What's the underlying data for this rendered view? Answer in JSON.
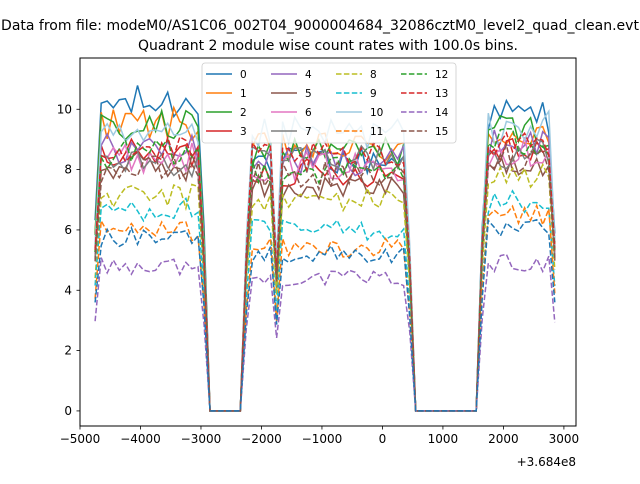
{
  "figure": {
    "suptitle": "Data from file: modeM0/AS1C06_002T04_9000004684_32086cztM0_level2_quad_clean.evt",
    "title": "Quadrant 2 module wise count rates with 100.0s bins.",
    "offset_label": "+3.684e8"
  },
  "chart_data": {
    "type": "line",
    "title": "Quadrant 2 module wise count rates with 100.0s bins.",
    "xlabel": "",
    "ylabel": "",
    "x_offset": 368400000,
    "xlim": [
      -5000,
      3200
    ],
    "ylim": [
      -0.5,
      11.7
    ],
    "xticks": [
      -5000,
      -4000,
      -3000,
      -2000,
      -1000,
      0,
      1000,
      2000,
      3000
    ],
    "xtick_labels": [
      "−5000",
      "−4000",
      "−3000",
      "−2000",
      "−1000",
      "0",
      "1000",
      "2000",
      "3000"
    ],
    "yticks": [
      0,
      2,
      4,
      6,
      8,
      10
    ],
    "ytick_labels": [
      "0",
      "2",
      "4",
      "6",
      "8",
      "10"
    ],
    "grid": false,
    "legend_position": "top-center",
    "legend_columns": 4,
    "segments": [
      [
        -4750,
        -2950
      ],
      [
        -2250,
        450
      ],
      [
        1650,
        2850
      ]
    ],
    "gap_points": [
      [
        -2850,
        0
      ],
      [
        -2350,
        0
      ],
      [
        550,
        0
      ],
      [
        1550,
        0
      ]
    ],
    "series": [
      {
        "name": "0",
        "color": "#1f77b4",
        "style": "solid",
        "levels": [
          10.2,
          8.3,
          9.8
        ]
      },
      {
        "name": "1",
        "color": "#ff7f0e",
        "style": "solid",
        "levels": [
          9.5,
          8.7,
          9.2
        ]
      },
      {
        "name": "2",
        "color": "#2ca02c",
        "style": "solid",
        "levels": [
          9.4,
          8.6,
          9.3
        ]
      },
      {
        "name": "3",
        "color": "#d62728",
        "style": "solid",
        "levels": [
          8.5,
          7.9,
          8.8
        ]
      },
      {
        "name": "4",
        "color": "#9467bd",
        "style": "solid",
        "levels": [
          8.7,
          8.3,
          8.9
        ]
      },
      {
        "name": "5",
        "color": "#8c564b",
        "style": "solid",
        "levels": [
          8.1,
          7.4,
          8.3
        ]
      },
      {
        "name": "6",
        "color": "#e377c2",
        "style": "solid",
        "levels": [
          8.4,
          8.1,
          8.6
        ]
      },
      {
        "name": "7",
        "color": "#7f7f7f",
        "style": "solid",
        "levels": [
          8.2,
          8.4,
          8.5
        ]
      },
      {
        "name": "8",
        "color": "#bcbd22",
        "style": "dashed",
        "levels": [
          7.1,
          7.0,
          7.8
        ]
      },
      {
        "name": "9",
        "color": "#17becf",
        "style": "dashed",
        "levels": [
          6.7,
          6.0,
          6.9
        ]
      },
      {
        "name": "10",
        "color": "#9ecae1",
        "style": "solid",
        "levels": [
          9.0,
          9.2,
          9.4
        ]
      },
      {
        "name": "11",
        "color": "#ff7f0e",
        "style": "dashed",
        "levels": [
          6.0,
          5.4,
          6.5
        ]
      },
      {
        "name": "12",
        "color": "#2ca02c",
        "style": "dashed",
        "levels": [
          8.5,
          8.0,
          8.9
        ]
      },
      {
        "name": "13",
        "color": "#d62728",
        "style": "dashed",
        "levels": [
          8.6,
          8.4,
          9.0
        ]
      },
      {
        "name": "14",
        "color": "#9467bd",
        "style": "dashed",
        "levels": [
          4.8,
          4.4,
          4.9
        ]
      },
      {
        "name": "15",
        "color": "#8c564b",
        "style": "dashed",
        "levels": [
          8.0,
          7.8,
          8.4
        ]
      }
    ],
    "series_extra": [
      {
        "name": "dark-blue dashed (legend label hidden)",
        "color": "#1f77b4",
        "style": "dashed",
        "levels": [
          5.8,
          5.2,
          6.0
        ]
      }
    ]
  }
}
